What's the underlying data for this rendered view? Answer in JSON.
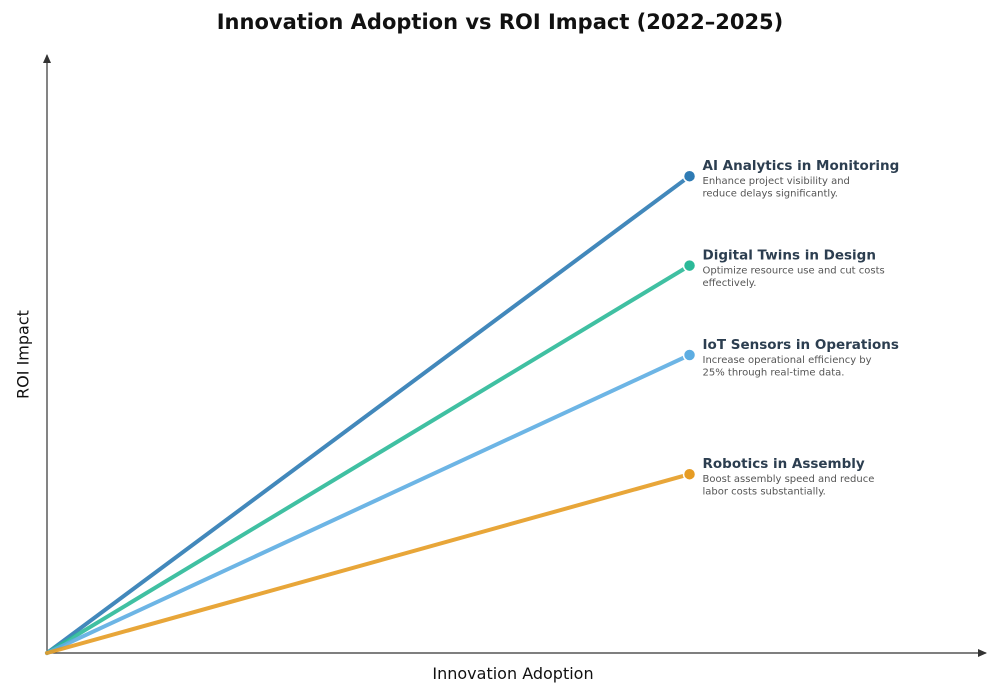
{
  "chart_data": {
    "type": "line",
    "title": "Innovation Adoption vs ROI Impact (2022–2025)",
    "xlabel": "Innovation Adoption",
    "ylabel": "ROI Impact",
    "xlim": [
      0,
      1
    ],
    "ylim": [
      0,
      1
    ],
    "grid": false,
    "series": [
      {
        "name": "AI Analytics in Monitoring",
        "description_lines": [
          "Enhance project visibility and",
          "reduce delays significantly."
        ],
        "color": "#2e7bb4",
        "x": [
          0,
          0.685
        ],
        "y": [
          0,
          0.8
        ]
      },
      {
        "name": "Digital Twins in Design",
        "description_lines": [
          "Optimize resource use and cut costs",
          "effectively."
        ],
        "color": "#2bb998",
        "x": [
          0,
          0.685
        ],
        "y": [
          0,
          0.65
        ]
      },
      {
        "name": "IoT Sensors in Operations",
        "description_lines": [
          "Increase operational efficiency by",
          "25% through real-time data."
        ],
        "color": "#5dade2",
        "x": [
          0,
          0.685
        ],
        "y": [
          0,
          0.5
        ]
      },
      {
        "name": "Robotics in Assembly",
        "description_lines": [
          "Boost assembly speed and reduce",
          "labor costs substantially."
        ],
        "color": "#e69c24",
        "x": [
          0,
          0.685
        ],
        "y": [
          0,
          0.3
        ]
      }
    ]
  }
}
